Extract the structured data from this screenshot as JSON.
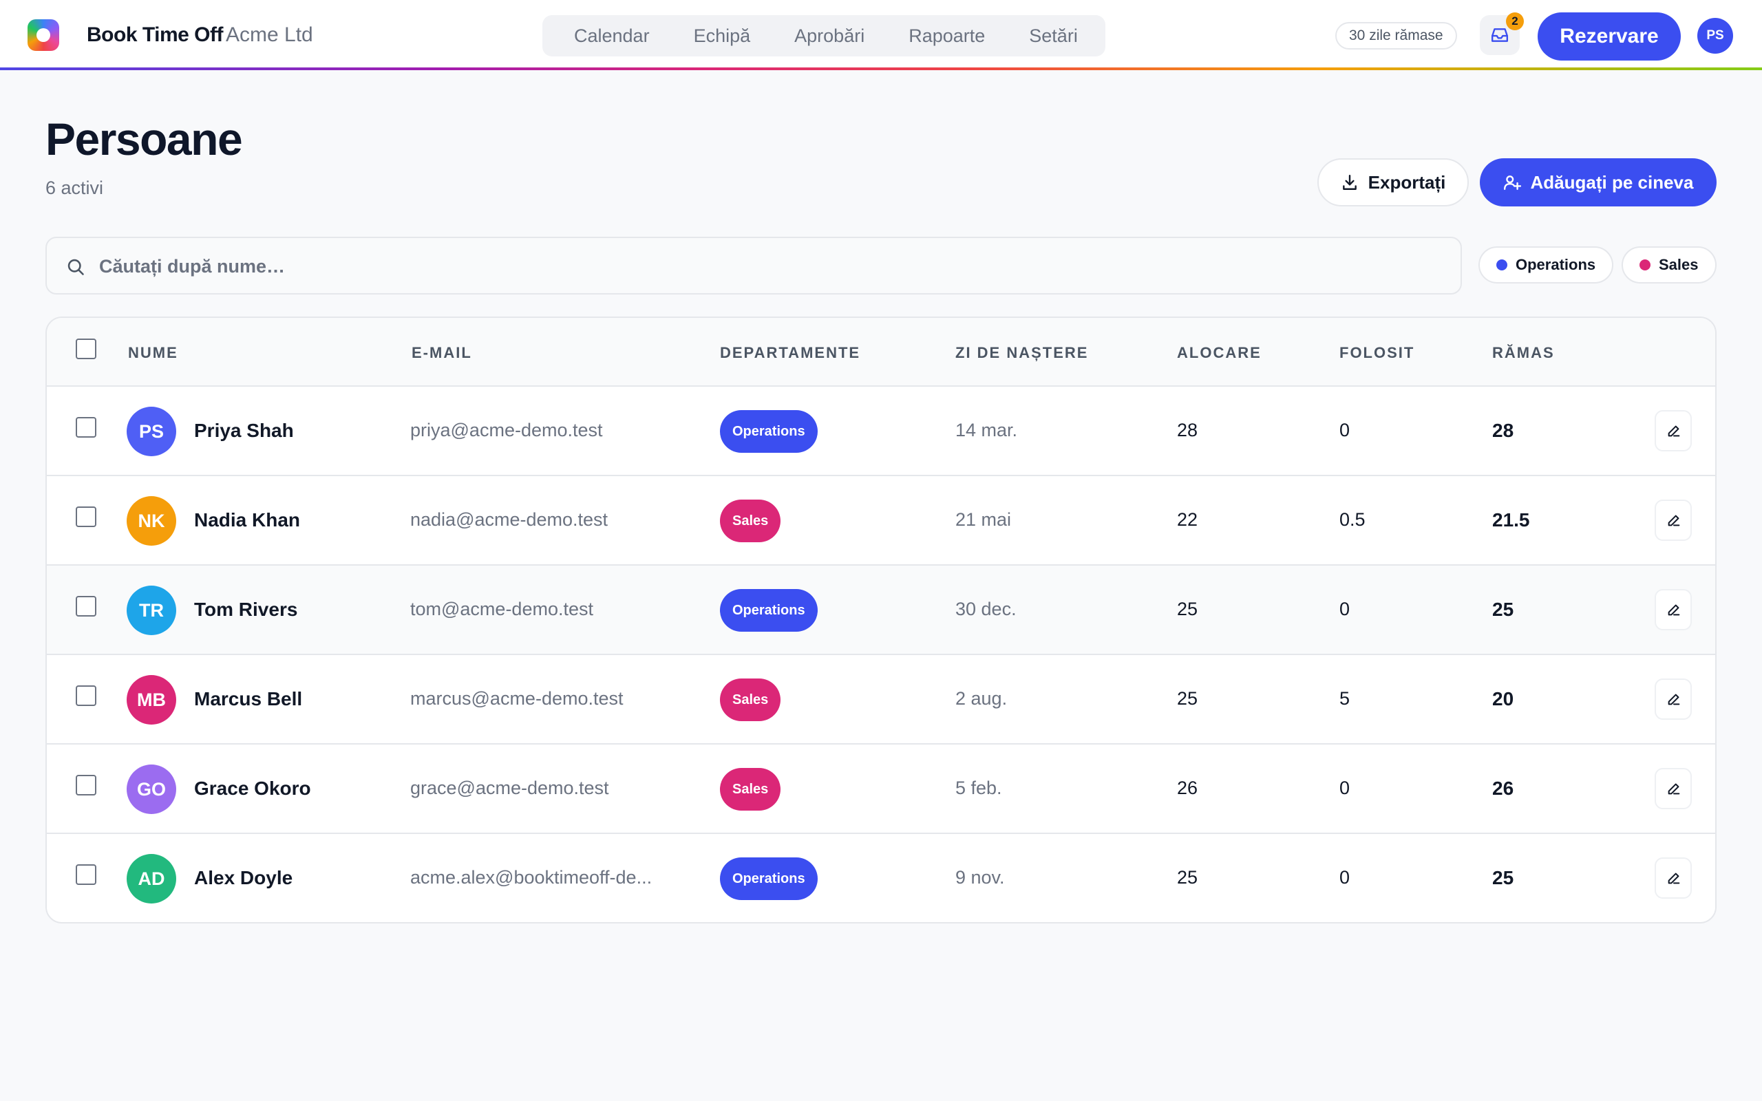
{
  "header": {
    "brand": "Book Time Off",
    "org": "Acme Ltd",
    "nav": [
      "Calendar",
      "Echipă",
      "Aprobări",
      "Rapoarte",
      "Setări"
    ],
    "days_left": "30 zile rămase",
    "inbox_count": "2",
    "book_label": "Rezervare",
    "user_initials": "PS"
  },
  "page": {
    "title": "Persoane",
    "subtitle": "6 activi",
    "export_label": "Exportați",
    "add_label": "Adăugați pe cineva"
  },
  "search": {
    "placeholder": "Căutați după nume…",
    "value": ""
  },
  "filters": [
    {
      "label": "Operations",
      "color": "#3b4ef0"
    },
    {
      "label": "Sales",
      "color": "#db2777"
    }
  ],
  "table": {
    "columns": {
      "name": "NUME",
      "email": "E-MAIL",
      "departments": "DEPARTAMENTE",
      "birthday": "ZI DE NAȘTERE",
      "allocation": "ALOCARE",
      "used": "FOLOSIT",
      "remaining": "RĂMAS"
    },
    "rows": [
      {
        "initials": "PS",
        "avatar_color": "#4f5ff5",
        "name": "Priya Shah",
        "email": "priya@acme-demo.test",
        "dept": "Operations",
        "dept_color": "#3b4ef0",
        "birthday": "14 mar.",
        "allocation": "28",
        "used": "0",
        "remaining": "28"
      },
      {
        "initials": "NK",
        "avatar_color": "#f59e0b",
        "name": "Nadia Khan",
        "email": "nadia@acme-demo.test",
        "dept": "Sales",
        "dept_color": "#db2777",
        "birthday": "21 mai",
        "allocation": "22",
        "used": "0.5",
        "remaining": "21.5"
      },
      {
        "initials": "TR",
        "avatar_color": "#1ea5e9",
        "name": "Tom Rivers",
        "email": "tom@acme-demo.test",
        "dept": "Operations",
        "dept_color": "#3b4ef0",
        "birthday": "30 dec.",
        "allocation": "25",
        "used": "0",
        "remaining": "25"
      },
      {
        "initials": "MB",
        "avatar_color": "#db2777",
        "name": "Marcus Bell",
        "email": "marcus@acme-demo.test",
        "dept": "Sales",
        "dept_color": "#db2777",
        "birthday": "2 aug.",
        "allocation": "25",
        "used": "5",
        "remaining": "20"
      },
      {
        "initials": "GO",
        "avatar_color": "#9b6cf0",
        "name": "Grace Okoro",
        "email": "grace@acme-demo.test",
        "dept": "Sales",
        "dept_color": "#db2777",
        "birthday": "5 feb.",
        "allocation": "26",
        "used": "0",
        "remaining": "26"
      },
      {
        "initials": "AD",
        "avatar_color": "#22b97e",
        "name": "Alex Doyle",
        "email": "acme.alex@booktimeoff-de...",
        "dept": "Operations",
        "dept_color": "#3b4ef0",
        "birthday": "9 nov.",
        "allocation": "25",
        "used": "0",
        "remaining": "25"
      }
    ]
  }
}
